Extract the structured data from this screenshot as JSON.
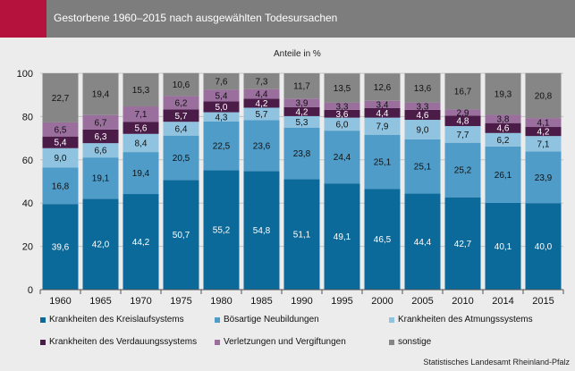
{
  "header": {
    "title": "Gestorbene 1960–2015 nach ausgewählten Todesursachen"
  },
  "source": "Statistisches Landesamt Rheinland-Pfalz",
  "colors": {
    "header_bg": "#7d7d7d",
    "accent": "#b5123e",
    "panel_bg": "#ececec"
  },
  "chart_data": {
    "type": "bar",
    "stacked": true,
    "unit_label": "Anteile in %",
    "categories": [
      "1960",
      "1965",
      "1970",
      "1975",
      "1980",
      "1985",
      "1990",
      "1995",
      "2000",
      "2005",
      "2010",
      "2014",
      "2015"
    ],
    "ylim": [
      0,
      100
    ],
    "yticks": [
      0,
      20,
      40,
      60,
      80,
      100
    ],
    "grid": true,
    "legend_position": "bottom",
    "series": [
      {
        "name": "Krankheiten des Kreislaufsystems",
        "color": "#0c6a9a",
        "label_color": "#ffffff",
        "values": [
          "39,6",
          "42,0",
          "44,2",
          "50,7",
          "55,2",
          "54,8",
          "51,1",
          "49,1",
          "46,5",
          "44,4",
          "42,7",
          "40,1",
          "40,0"
        ]
      },
      {
        "name": "Bösartige Neubildungen",
        "color": "#4f9cc8",
        "label_color": "#111111",
        "values": [
          "16,8",
          "19,1",
          "19,4",
          "20,5",
          "22,5",
          "23,6",
          "23,8",
          "24,4",
          "25,1",
          "25,1",
          "25,2",
          "26,1",
          "23,9"
        ]
      },
      {
        "name": "Krankheiten des Atmungssystems",
        "color": "#8fc3e0",
        "label_color": "#111111",
        "values": [
          "9,0",
          "6,6",
          "8,4",
          "6,4",
          "4,3",
          "5,7",
          "5,3",
          "6,0",
          "7,9",
          "9,0",
          "7,7",
          "6,2",
          "7,1"
        ]
      },
      {
        "name": "Krankheiten des Verdauungssystems",
        "color": "#4b1c48",
        "label_color": "#ffffff",
        "values": [
          "5,4",
          "6,3",
          "5,6",
          "5,7",
          "5,0",
          "4,2",
          "4,2",
          "3,6",
          "4,4",
          "4,6",
          "4,8",
          "4,6",
          "4,2"
        ]
      },
      {
        "name": "Verletzungen und Vergiftungen",
        "color": "#9a6f9e",
        "label_color": "#111111",
        "values": [
          "6,5",
          "6,7",
          "7,1",
          "6,2",
          "5,4",
          "4,4",
          "3,9",
          "3,3",
          "3,4",
          "3,3",
          "2,9",
          "3,8",
          "4,1"
        ]
      },
      {
        "name": "sonstige",
        "color": "#868686",
        "label_color": "#111111",
        "values": [
          "22,7",
          "19,4",
          "15,3",
          "10,6",
          "7,6",
          "7,3",
          "11,7",
          "13,5",
          "12,6",
          "13,6",
          "16,7",
          "19,3",
          "20,8"
        ]
      }
    ]
  }
}
